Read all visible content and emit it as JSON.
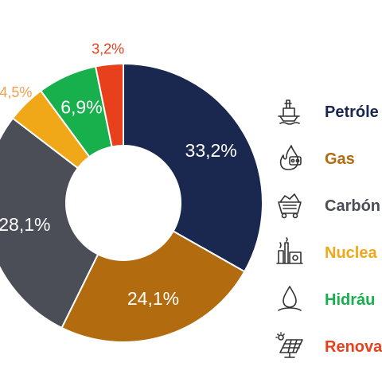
{
  "chart_data": {
    "type": "pie",
    "variant": "donut",
    "start_angle_deg": 0,
    "direction": "clockwise",
    "slices": [
      {
        "name": "Petróle",
        "value": 33.2,
        "label": "33,2%",
        "color": "#1a2850"
      },
      {
        "name": "Gas",
        "value": 24.1,
        "label": "24,1%",
        "color": "#b36b10"
      },
      {
        "name": "Carbón",
        "value": 28.1,
        "label": "28,1%",
        "color": "#4b4e57"
      },
      {
        "name": "Nuclea",
        "value": 4.5,
        "label": "4,5%",
        "color": "#f0a818"
      },
      {
        "name": "Hidráu",
        "value": 6.9,
        "label": "6,9%",
        "color": "#17b04c"
      },
      {
        "name": "Renova",
        "value": 3.2,
        "label": "3,2%",
        "color": "#e8401c"
      }
    ],
    "legend": {
      "placement": "right",
      "items": [
        {
          "label": "Petróle",
          "color": "#1a2850",
          "icon": "oil-platform-icon"
        },
        {
          "label": "Gas",
          "color": "#b36b10",
          "icon": "gas-flame-icon"
        },
        {
          "label": "Carbón",
          "color": "#4b4e57",
          "icon": "coal-cart-icon"
        },
        {
          "label": "Nuclea",
          "color": "#f0a818",
          "icon": "nuclear-plant-icon"
        },
        {
          "label": "Hidráu",
          "color": "#17b04c",
          "icon": "water-drop-icon"
        },
        {
          "label": "Renova",
          "color": "#e8401c",
          "icon": "solar-panel-icon"
        }
      ]
    },
    "outside_label_colors": {
      "4,5%": "#f0a050",
      "3,2%": "#e8401c"
    }
  }
}
